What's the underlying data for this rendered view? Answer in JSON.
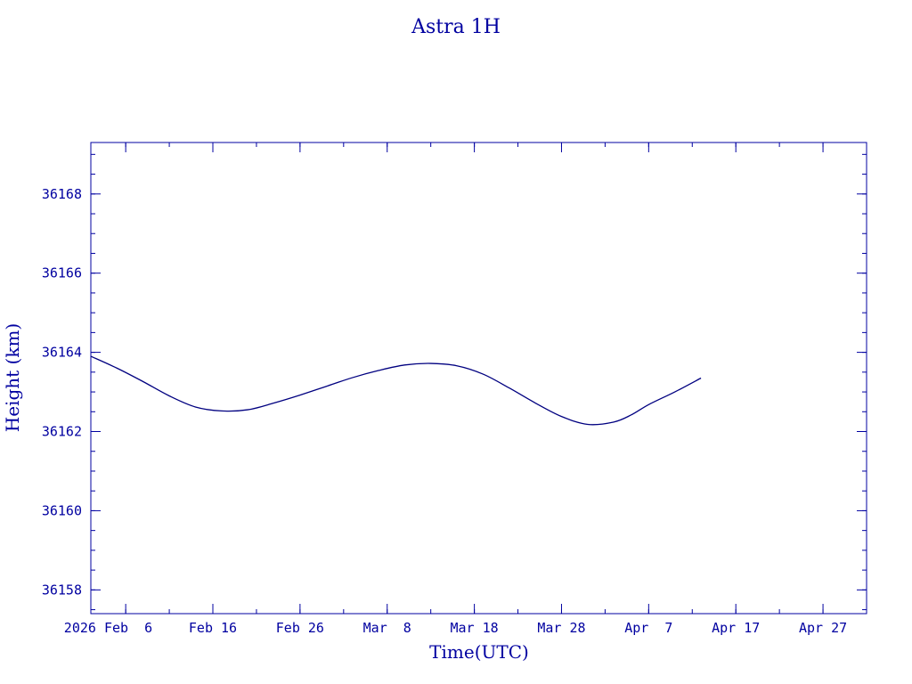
{
  "colors": {
    "axis": "#0000a0",
    "line": "#000080",
    "background": "#ffffff"
  },
  "chart_data": {
    "type": "line",
    "title": "Astra 1H",
    "xlabel": "Time(UTC)",
    "ylabel": "Height (km)",
    "x_unit": "date (UTC)",
    "xlim": [
      "2026-02-02",
      "2026-05-02"
    ],
    "ylim": [
      36157.4,
      36169.3
    ],
    "x_ticks": [
      {
        "date": "2026-02-06",
        "label": "2026 Feb  6"
      },
      {
        "date": "2026-02-16",
        "label": "Feb 16"
      },
      {
        "date": "2026-02-26",
        "label": "Feb 26"
      },
      {
        "date": "2026-03-08",
        "label": "Mar  8"
      },
      {
        "date": "2026-03-18",
        "label": "Mar 18"
      },
      {
        "date": "2026-03-28",
        "label": "Mar 28"
      },
      {
        "date": "2026-04-07",
        "label": "Apr  7"
      },
      {
        "date": "2026-04-17",
        "label": "Apr 17"
      },
      {
        "date": "2026-04-27",
        "label": "Apr 27"
      }
    ],
    "y_ticks": [
      36158,
      36160,
      36162,
      36164,
      36166,
      36168
    ],
    "y_minor_step": 0.5,
    "x_minor_step_days": 5,
    "grid": false,
    "legend": "none",
    "series": [
      {
        "x": [
          "2026-02-02",
          "2026-02-05",
          "2026-02-08",
          "2026-02-11",
          "2026-02-14",
          "2026-02-17",
          "2026-02-20",
          "2026-02-23",
          "2026-02-26",
          "2026-03-01",
          "2026-03-04",
          "2026-03-07",
          "2026-03-10",
          "2026-03-13",
          "2026-03-16",
          "2026-03-19",
          "2026-03-22",
          "2026-03-25",
          "2026-03-28",
          "2026-03-31",
          "2026-04-03",
          "2026-04-05",
          "2026-04-07",
          "2026-04-10",
          "2026-04-13"
        ],
        "y": [
          36163.9,
          36163.6,
          36163.26,
          36162.9,
          36162.62,
          36162.52,
          36162.55,
          36162.72,
          36162.92,
          36163.14,
          36163.36,
          36163.54,
          36163.68,
          36163.72,
          36163.66,
          36163.45,
          36163.1,
          36162.72,
          36162.38,
          36162.18,
          36162.24,
          36162.42,
          36162.68,
          36163.0,
          36163.35
        ]
      }
    ]
  }
}
